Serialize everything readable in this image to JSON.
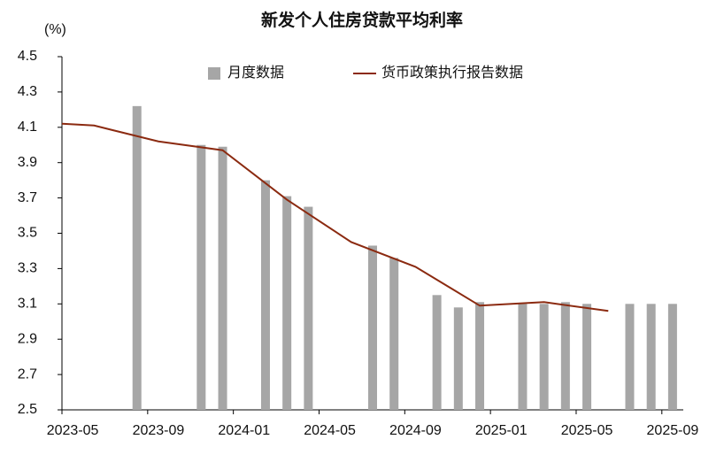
{
  "chart_data": {
    "type": "bar-line",
    "title": "新发个人住房贷款平均利率",
    "y_label": "(%)",
    "categories": [
      "2023-05",
      null,
      null,
      null,
      "2023-09",
      null,
      null,
      null,
      "2024-01",
      null,
      null,
      null,
      "2024-05",
      null,
      null,
      null,
      "2024-09",
      null,
      null,
      null,
      "2025-01",
      null,
      null,
      null,
      "2025-05",
      null,
      null,
      null,
      "2025-09"
    ],
    "ylim": [
      2.5,
      4.5
    ],
    "yticks": [
      2.5,
      2.7,
      2.9,
      3.1,
      3.3,
      3.5,
      3.7,
      3.9,
      4.1,
      4.3,
      4.5
    ],
    "series": [
      {
        "name": "月度数据",
        "type": "bar",
        "color": "#a6a6a6",
        "values": [
          null,
          null,
          null,
          4.22,
          null,
          null,
          4.0,
          3.99,
          null,
          3.8,
          3.71,
          3.65,
          null,
          null,
          3.43,
          3.36,
          null,
          3.15,
          3.08,
          3.11,
          null,
          3.1,
          3.1,
          3.11,
          3.1,
          null,
          3.1,
          3.1,
          3.1
        ]
      },
      {
        "name": "货币政策执行报告数据",
        "type": "line",
        "color": "#8b2a10",
        "x": [
          0,
          1,
          4,
          7,
          10,
          13,
          16,
          19,
          22,
          25
        ],
        "values": [
          4.12,
          4.11,
          4.02,
          3.97,
          3.69,
          3.45,
          3.31,
          3.09,
          3.11,
          3.06
        ]
      }
    ]
  }
}
